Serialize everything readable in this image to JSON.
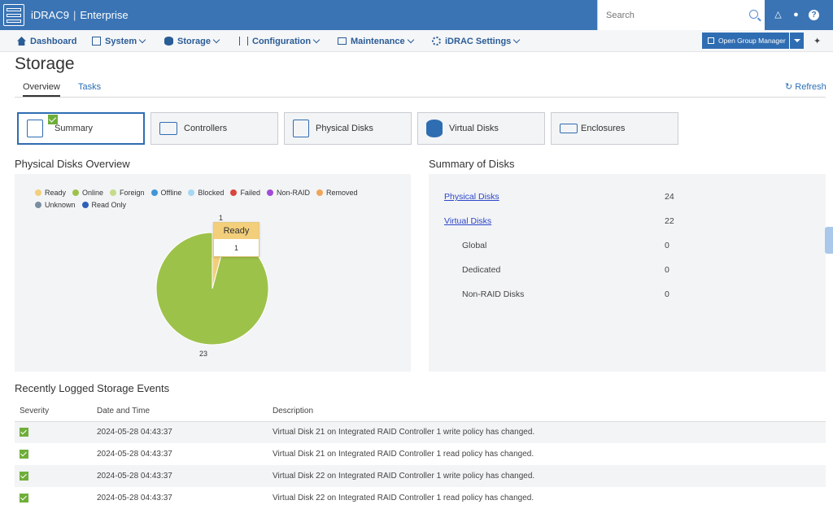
{
  "header": {
    "product": "iDRAC9",
    "edition": "Enterprise",
    "search_placeholder": "Search",
    "icons": [
      "lock-icon",
      "user-icon",
      "help-icon"
    ],
    "help_glyph": "?"
  },
  "nav": {
    "items": [
      {
        "label": "Dashboard",
        "icon": "home-icon"
      },
      {
        "label": "System",
        "icon": "server-icon"
      },
      {
        "label": "Storage",
        "icon": "database-icon"
      },
      {
        "label": "Configuration",
        "icon": "sliders-icon"
      },
      {
        "label": "Maintenance",
        "icon": "monitor-icon"
      },
      {
        "label": "iDRAC Settings",
        "icon": "gear-icon"
      }
    ],
    "group_manager_label": "Open Group Manager"
  },
  "page": {
    "title": "Storage",
    "tabs": [
      "Overview",
      "Tasks"
    ],
    "refresh_label": "Refresh"
  },
  "cards": [
    {
      "label": "Summary",
      "active": true
    },
    {
      "label": "Controllers",
      "active": false
    },
    {
      "label": "Physical Disks",
      "active": false
    },
    {
      "label": "Virtual Disks",
      "active": false
    },
    {
      "label": "Enclosures",
      "active": false
    }
  ],
  "overview": {
    "title": "Physical Disks Overview",
    "legend": [
      {
        "label": "Ready",
        "color": "#f3cf7b"
      },
      {
        "label": "Online",
        "color": "#9dc24a"
      },
      {
        "label": "Foreign",
        "color": "#c6dc8a"
      },
      {
        "label": "Offline",
        "color": "#3f96d9"
      },
      {
        "label": "Blocked",
        "color": "#a6d8f2"
      },
      {
        "label": "Failed",
        "color": "#d9463e"
      },
      {
        "label": "Non-RAID",
        "color": "#a34ad8"
      },
      {
        "label": "Removed",
        "color": "#f2a55a"
      },
      {
        "label": "Unknown",
        "color": "#7a8ea2"
      },
      {
        "label": "Read Only",
        "color": "#2f5fb8"
      }
    ],
    "chart_data": {
      "type": "pie",
      "slices": [
        {
          "label": "Ready",
          "value": 1,
          "color": "#f3cf7b"
        },
        {
          "label": "Online",
          "value": 23,
          "color": "#9dc24a"
        }
      ],
      "data_labels": [
        "1",
        "23"
      ],
      "tooltip": {
        "label": "Ready",
        "value": "1"
      }
    }
  },
  "summary": {
    "title": "Summary of Disks",
    "rows": [
      {
        "label": "Physical Disks",
        "value": "24",
        "link": true
      },
      {
        "label": "Virtual Disks",
        "value": "22",
        "link": true
      },
      {
        "label": "Global",
        "value": "0",
        "link": false
      },
      {
        "label": "Dedicated",
        "value": "0",
        "link": false
      },
      {
        "label": "Non-RAID Disks",
        "value": "0",
        "link": false
      }
    ]
  },
  "events": {
    "title": "Recently Logged Storage Events",
    "columns": [
      "Severity",
      "Date and Time",
      "Description"
    ],
    "rows": [
      {
        "severity": "ok",
        "datetime": "2024-05-28 04:43:37",
        "description": "Virtual Disk 21 on Integrated RAID Controller 1 write policy has changed."
      },
      {
        "severity": "ok",
        "datetime": "2024-05-28 04:43:37",
        "description": "Virtual Disk 21 on Integrated RAID Controller 1 read policy has changed."
      },
      {
        "severity": "ok",
        "datetime": "2024-05-28 04:43:37",
        "description": "Virtual Disk 22 on Integrated RAID Controller 1 write policy has changed."
      },
      {
        "severity": "ok",
        "datetime": "2024-05-28 04:43:37",
        "description": "Virtual Disk 22 on Integrated RAID Controller 1 read policy has changed."
      }
    ]
  }
}
